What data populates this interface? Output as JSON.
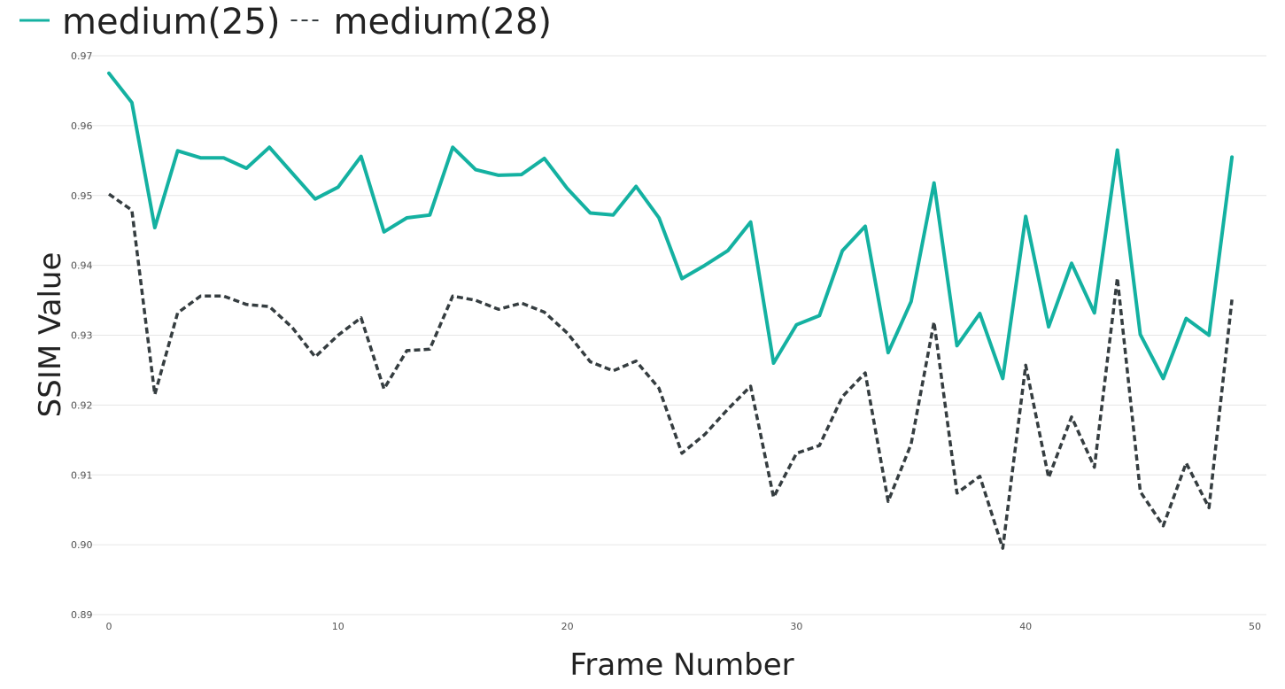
{
  "chart_data": {
    "type": "line",
    "title": "",
    "xlabel": "Frame Number",
    "ylabel": "SSIM Value",
    "xlim": [
      0,
      50
    ],
    "ylim": [
      0.89,
      0.97
    ],
    "xticks": [
      0,
      10,
      20,
      30,
      40,
      50
    ],
    "xtick_labels": [
      "0",
      "10",
      "20",
      "30",
      "40",
      "50"
    ],
    "yticks": [
      0.89,
      0.9,
      0.91,
      0.92,
      0.93,
      0.94,
      0.95,
      0.96,
      0.97
    ],
    "ytick_labels": [
      "0.89",
      "0.90",
      "0.91",
      "0.92",
      "0.93",
      "0.94",
      "0.95",
      "0.96",
      "0.97"
    ],
    "grid": "horizontal",
    "legend_position": "top-left",
    "x": [
      0,
      1,
      2,
      3,
      4,
      5,
      6,
      7,
      8,
      9,
      10,
      11,
      12,
      13,
      14,
      15,
      16,
      17,
      18,
      19,
      20,
      21,
      22,
      23,
      24,
      25,
      26,
      27,
      28,
      29,
      30,
      31,
      32,
      33,
      34,
      35,
      36,
      37,
      38,
      39,
      40,
      41,
      42,
      43,
      44,
      45,
      46,
      47,
      48,
      49
    ],
    "series": [
      {
        "name": "medium(25)",
        "color": "#14b1a1",
        "dash": "solid",
        "values": [
          0.9675,
          0.9633,
          0.9454,
          0.9564,
          0.9554,
          0.9554,
          0.9539,
          0.9569,
          0.9532,
          0.9495,
          0.9512,
          0.9556,
          0.9448,
          0.9468,
          0.9472,
          0.9569,
          0.9537,
          0.9529,
          0.953,
          0.9553,
          0.951,
          0.9475,
          0.9472,
          0.9513,
          0.9468,
          0.9381,
          0.94,
          0.9421,
          0.9462,
          0.926,
          0.9315,
          0.9328,
          0.9421,
          0.9456,
          0.9275,
          0.9348,
          0.9518,
          0.9285,
          0.9331,
          0.9238,
          0.947,
          0.9312,
          0.9403,
          0.9332,
          0.9565,
          0.9301,
          0.9238,
          0.9324,
          0.93,
          0.9555
        ]
      },
      {
        "name": "medium(28)",
        "color": "#353d40",
        "dash": "dashed",
        "values": [
          0.9502,
          0.9479,
          0.9215,
          0.9332,
          0.9356,
          0.9356,
          0.9344,
          0.9341,
          0.9311,
          0.9269,
          0.93,
          0.9325,
          0.9223,
          0.9278,
          0.928,
          0.9356,
          0.935,
          0.9337,
          0.9346,
          0.9333,
          0.9303,
          0.9262,
          0.9249,
          0.9263,
          0.9224,
          0.9131,
          0.9158,
          0.9194,
          0.9227,
          0.9068,
          0.9131,
          0.9142,
          0.9212,
          0.9246,
          0.9062,
          0.9144,
          0.9319,
          0.9074,
          0.9098,
          0.8995,
          0.9257,
          0.9096,
          0.9183,
          0.9111,
          0.9382,
          0.9076,
          0.9027,
          0.9117,
          0.9053,
          0.9351
        ]
      }
    ]
  }
}
